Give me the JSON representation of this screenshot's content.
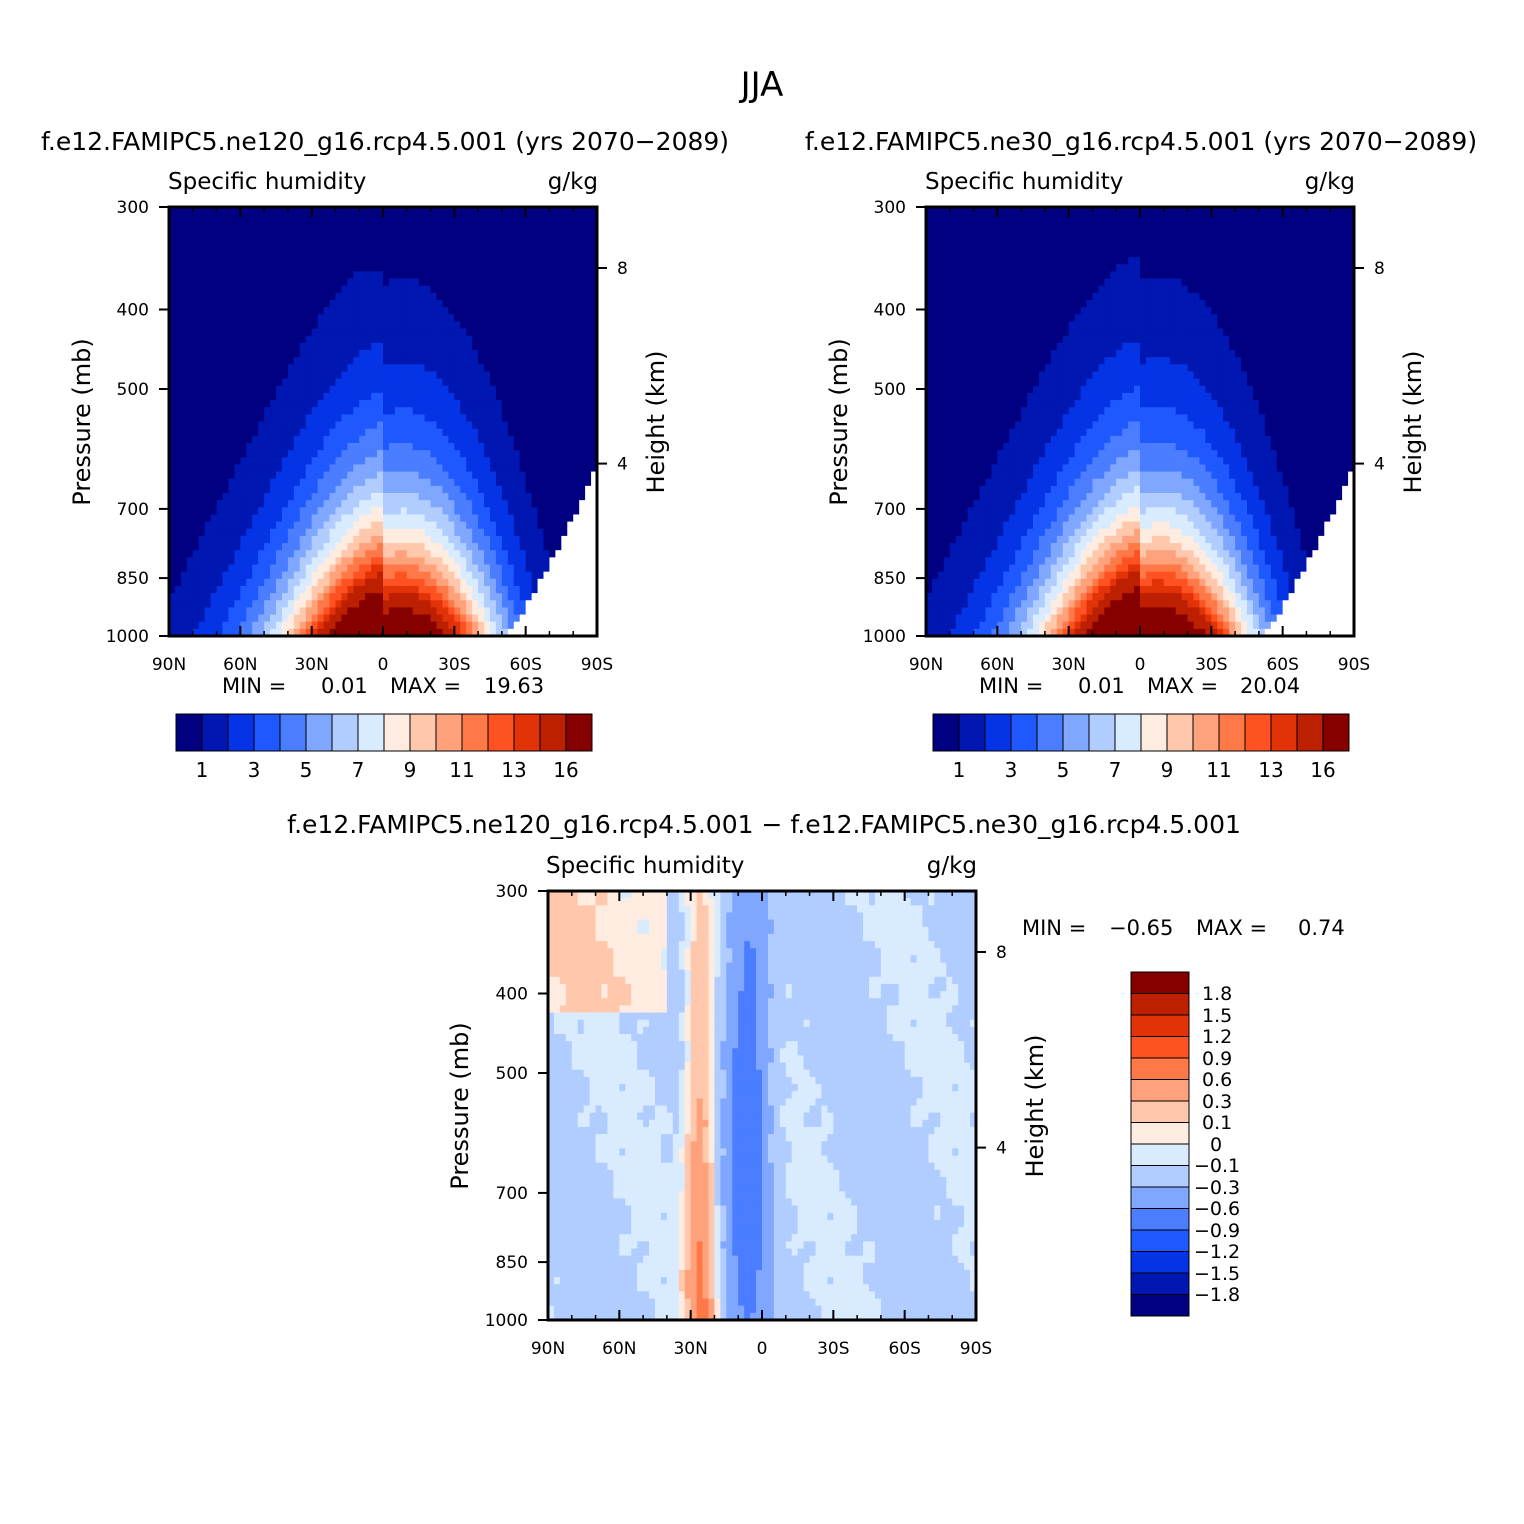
{
  "figure": {
    "title": "JJA",
    "colors": {
      "abs_levels": [
        "#000080",
        "#0017b2",
        "#0434e6",
        "#1f58ff",
        "#4a7dff",
        "#80a7ff",
        "#b1ccff",
        "#d9ecff",
        "#ffece0",
        "#ffc8ad",
        "#ffa27c",
        "#ff7848",
        "#ff5222",
        "#e23208",
        "#bd2000",
        "#870000"
      ],
      "diff_levels": [
        "#000080",
        "#0017b2",
        "#0434e6",
        "#1f58ff",
        "#4a7dff",
        "#80a7ff",
        "#b1ccff",
        "#d9ecff",
        "#ffece0",
        "#ffc8ad",
        "#ffa27c",
        "#ff7848",
        "#ff5222",
        "#e23208",
        "#bd2000",
        "#870000"
      ]
    }
  },
  "chart_data": [
    {
      "type": "heatmap",
      "title": "f.e12.FAMIPC5.ne120_g16.rcp4.5.001 (yrs 2070−2089)",
      "left_string": "Specific humidity",
      "right_string": "g/kg",
      "xlabel": "",
      "ylabel": "Pressure (mb)",
      "y2label": "Height (km)",
      "x_ticks": [
        "90N",
        "60N",
        "30N",
        "0",
        "30S",
        "60S",
        "90S"
      ],
      "y_ticks": [
        "300",
        "400",
        "500",
        "700",
        "850",
        "1000"
      ],
      "y2_ticks": [
        "8",
        "4"
      ],
      "xlim": [
        90,
        -90
      ],
      "ylim": [
        1000,
        300
      ],
      "field": {
        "max_value": 19.63,
        "peak_lat": -8,
        "top_pressure": 360,
        "surface_cut_lat": -52
      },
      "stats": {
        "min_label": "MIN =",
        "min": "0.01",
        "max_label": "MAX =",
        "max": "19.63"
      },
      "colorbar": {
        "labels": [
          "1",
          "3",
          "5",
          "7",
          "9",
          "11",
          "13",
          "16"
        ]
      }
    },
    {
      "type": "heatmap",
      "title": "f.e12.FAMIPC5.ne30_g16.rcp4.5.001 (yrs 2070−2089)",
      "left_string": "Specific humidity",
      "right_string": "g/kg",
      "xlabel": "",
      "ylabel": "Pressure (mb)",
      "y2label": "Height (km)",
      "x_ticks": [
        "90N",
        "60N",
        "30N",
        "0",
        "30S",
        "60S",
        "90S"
      ],
      "y_ticks": [
        "300",
        "400",
        "500",
        "700",
        "850",
        "1000"
      ],
      "y2_ticks": [
        "8",
        "4"
      ],
      "xlim": [
        90,
        -90
      ],
      "ylim": [
        1000,
        300
      ],
      "field": {
        "max_value": 20.04,
        "peak_lat": -8,
        "top_pressure": 330,
        "surface_cut_lat": -52
      },
      "stats": {
        "min_label": "MIN =",
        "min": "0.01",
        "max_label": "MAX =",
        "max": "20.04"
      },
      "colorbar": {
        "labels": [
          "1",
          "3",
          "5",
          "7",
          "9",
          "11",
          "13",
          "16"
        ]
      }
    },
    {
      "type": "heatmap",
      "title": "f.e12.FAMIPC5.ne120_g16.rcp4.5.001 − f.e12.FAMIPC5.ne30_g16.rcp4.5.001",
      "left_string": "Specific humidity",
      "right_string": "g/kg",
      "xlabel": "",
      "ylabel": "Pressure (mb)",
      "y2label": "Height (km)",
      "x_ticks": [
        "90N",
        "60N",
        "30N",
        "0",
        "30S",
        "60S",
        "90S"
      ],
      "y_ticks": [
        "300",
        "400",
        "500",
        "700",
        "850",
        "1000"
      ],
      "y2_ticks": [
        "8",
        "4"
      ],
      "xlim": [
        90,
        -90
      ],
      "ylim": [
        1000,
        300
      ],
      "field": {
        "min_value": -0.65,
        "max_value": 0.74,
        "pos_lat": 26,
        "neg_lat": 6
      },
      "stats": {
        "min_label": "MIN =",
        "min": "−0.65",
        "max_label": "MAX =",
        "max": "0.74"
      },
      "colorbar": {
        "labels": [
          "1.8",
          "1.5",
          "1.2",
          "0.9",
          "0.6",
          "0.3",
          "0.1",
          "0",
          "−0.1",
          "−0.3",
          "−0.6",
          "−0.9",
          "−1.2",
          "−1.5",
          "−1.8"
        ]
      }
    }
  ]
}
